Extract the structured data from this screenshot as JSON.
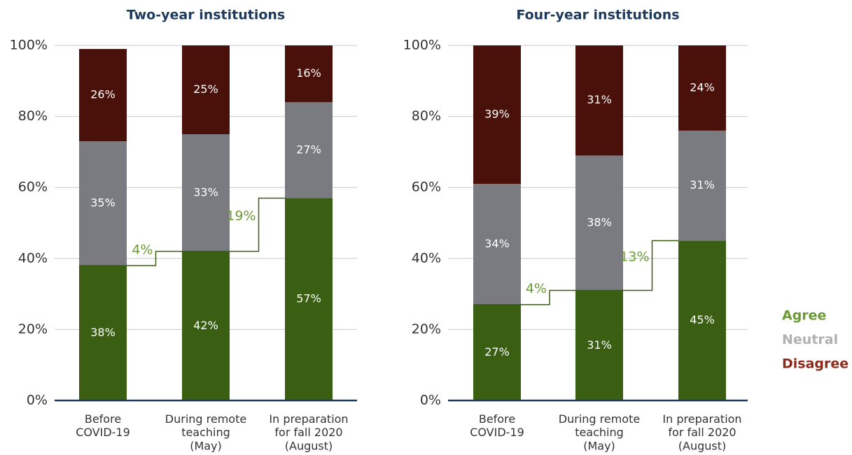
{
  "chart_data": [
    {
      "type": "stacked_bar",
      "title": "Two-year institutions",
      "categories": [
        "Before\nCOVID-19",
        "During remote\nteaching\n(May)",
        "In preparation\nfor fall 2020\n(August)"
      ],
      "series": [
        {
          "name": "Agree",
          "color": "#3a5f12",
          "label_color": "#6b9a37",
          "values": [
            38,
            42,
            57
          ],
          "value_labels": [
            "38%",
            "42%",
            "57%"
          ]
        },
        {
          "name": "Neutral",
          "color": "#7a7b80",
          "label_color": "#b0b0b0",
          "values": [
            35,
            33,
            27
          ],
          "value_labels": [
            "35%",
            "33%",
            "27%"
          ]
        },
        {
          "name": "Disagree",
          "color": "#4a100a",
          "label_color": "#8b2a1a",
          "values": [
            26,
            25,
            16
          ],
          "value_labels": [
            "26%",
            "25%",
            "16%"
          ]
        }
      ],
      "annotations": [
        "4%",
        "19%"
      ],
      "ylim": [
        0,
        100
      ],
      "yticks": [
        {
          "value": 0,
          "label": "0%"
        },
        {
          "value": 20,
          "label": "20%"
        },
        {
          "value": 40,
          "label": "40%"
        },
        {
          "value": 60,
          "label": "60%"
        },
        {
          "value": 80,
          "label": "80%"
        },
        {
          "value": 100,
          "label": "100%"
        }
      ],
      "grid": true
    },
    {
      "type": "stacked_bar",
      "title": "Four-year institutions",
      "categories": [
        "Before\nCOVID-19",
        "During remote\nteaching\n(May)",
        "In preparation\nfor fall 2020\n(August)"
      ],
      "series": [
        {
          "name": "Agree",
          "color": "#3a5f12",
          "label_color": "#6b9a37",
          "values": [
            27,
            31,
            45
          ],
          "value_labels": [
            "27%",
            "31%",
            "45%"
          ]
        },
        {
          "name": "Neutral",
          "color": "#7a7b80",
          "label_color": "#b0b0b0",
          "values": [
            34,
            38,
            31
          ],
          "value_labels": [
            "34%",
            "38%",
            "31%"
          ]
        },
        {
          "name": "Disagree",
          "color": "#4a100a",
          "label_color": "#8b2a1a",
          "values": [
            39,
            31,
            24
          ],
          "value_labels": [
            "39%",
            "31%",
            "24%"
          ]
        }
      ],
      "annotations": [
        "4%",
        "13%"
      ],
      "ylim": [
        0,
        100
      ],
      "yticks": [
        {
          "value": 0,
          "label": "0%"
        },
        {
          "value": 20,
          "label": "20%"
        },
        {
          "value": 40,
          "label": "40%"
        },
        {
          "value": 60,
          "label": "60%"
        },
        {
          "value": 80,
          "label": "80%"
        },
        {
          "value": 100,
          "label": "100%"
        }
      ],
      "grid": true
    }
  ]
}
